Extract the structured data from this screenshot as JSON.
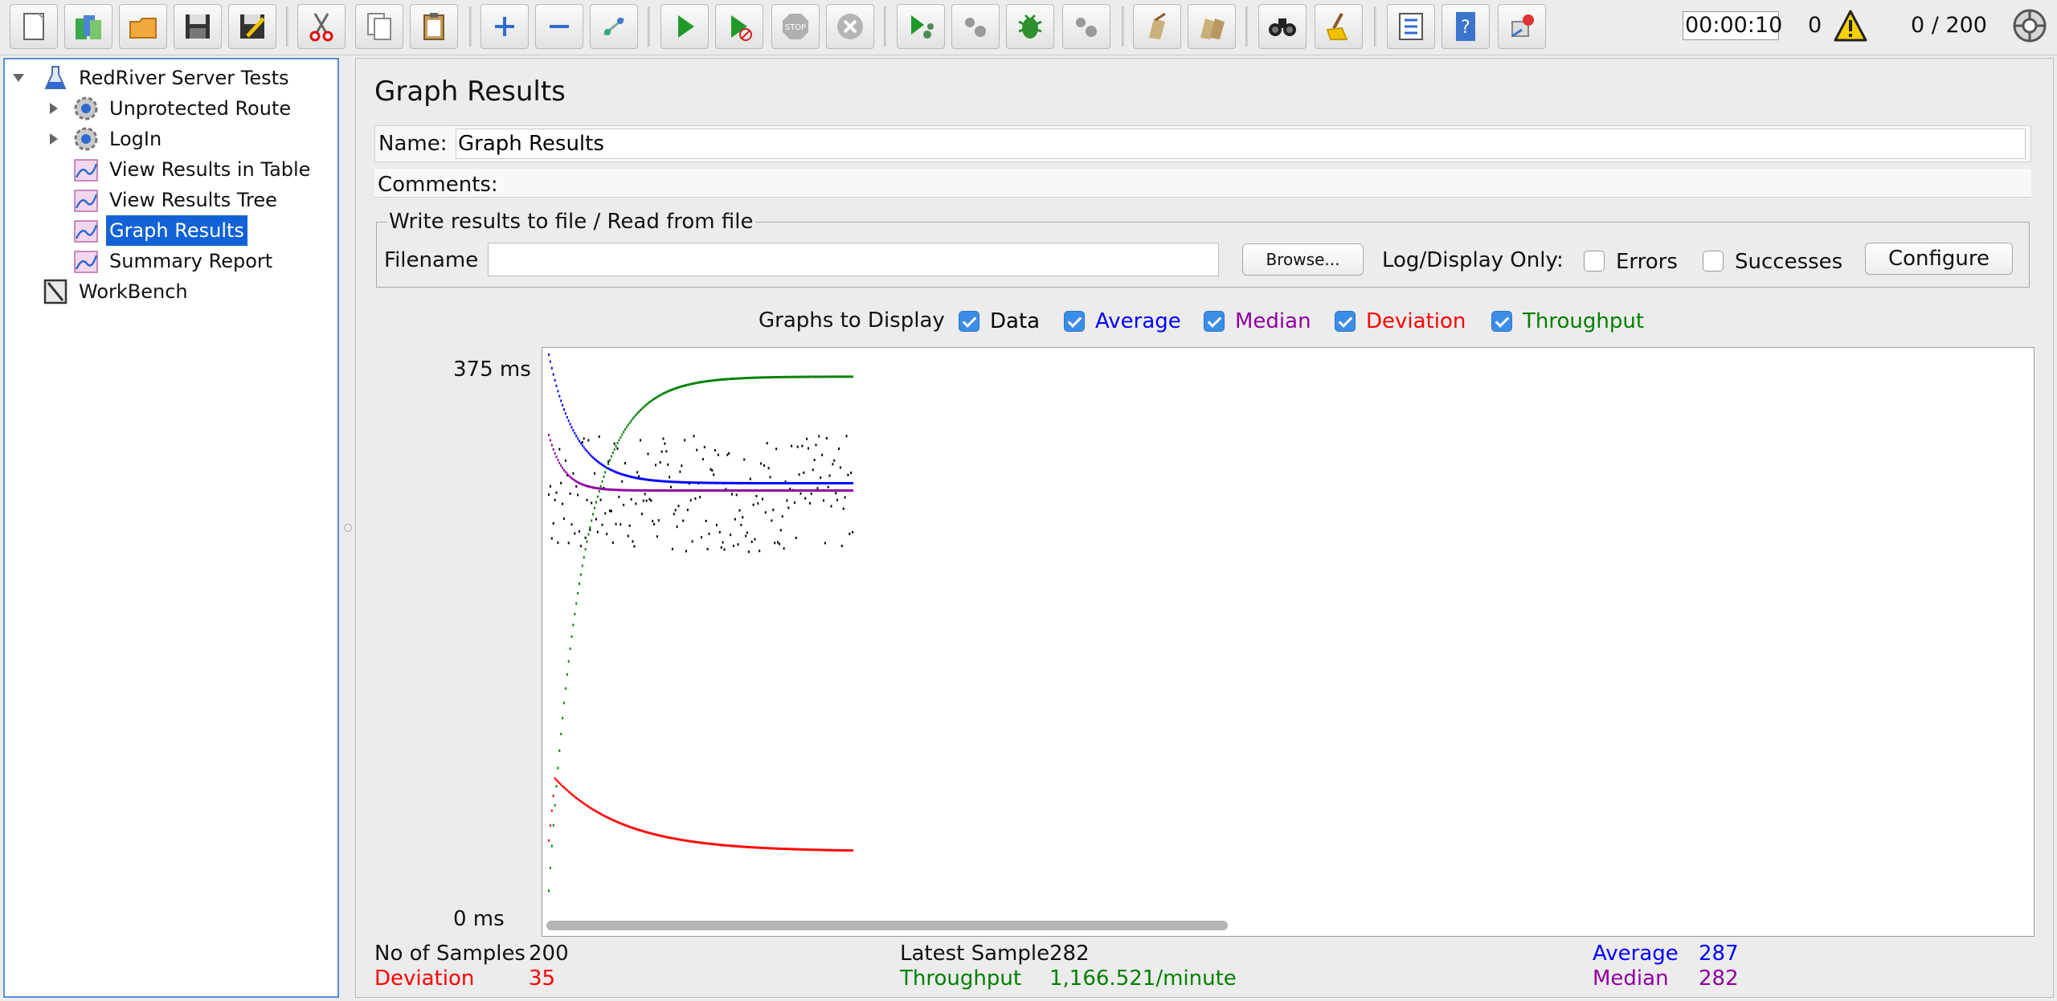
{
  "colors": {
    "data": "#000000",
    "average": "#0000ff",
    "median": "#9000a0",
    "deviation": "#ff0000",
    "throughput": "#008000",
    "selection": "#1162d6"
  },
  "toolbar": {
    "buttons": [
      {
        "name": "new-icon"
      },
      {
        "name": "templates-icon"
      },
      {
        "name": "open-icon"
      },
      {
        "name": "save-icon"
      },
      {
        "name": "save-as-icon"
      },
      {
        "name": "cut-icon"
      },
      {
        "name": "copy-icon"
      },
      {
        "name": "paste-icon"
      },
      {
        "name": "expand-all-icon"
      },
      {
        "name": "collapse-all-icon"
      },
      {
        "name": "toggle-icon"
      },
      {
        "name": "start-icon"
      },
      {
        "name": "start-no-pause-icon"
      },
      {
        "name": "stop-icon"
      },
      {
        "name": "shutdown-icon"
      },
      {
        "name": "remote-start-icon"
      },
      {
        "name": "remote-stop-icon"
      },
      {
        "name": "remote-debug-icon"
      },
      {
        "name": "remote-exit-icon"
      },
      {
        "name": "clear-icon"
      },
      {
        "name": "clear-all-icon"
      },
      {
        "name": "search-icon"
      },
      {
        "name": "reset-search-icon"
      },
      {
        "name": "function-helper-icon"
      },
      {
        "name": "help-icon"
      },
      {
        "name": "ssl-manager-icon"
      }
    ],
    "timer": "00:00:10",
    "error_count": "0",
    "threads": "0 / 200"
  },
  "tree": {
    "items": [
      {
        "label": "RedRiver Server Tests",
        "icon": "test-plan-icon"
      },
      {
        "label": "Unprotected Route",
        "icon": "thread-group-icon"
      },
      {
        "label": "LogIn",
        "icon": "thread-group-icon"
      },
      {
        "label": "View Results in Table",
        "icon": "listener-icon"
      },
      {
        "label": "View Results Tree",
        "icon": "listener-icon"
      },
      {
        "label": "Graph Results",
        "icon": "listener-icon",
        "selected": true
      },
      {
        "label": "Summary Report",
        "icon": "listener-icon"
      },
      {
        "label": "WorkBench",
        "icon": "workbench-icon"
      }
    ]
  },
  "panel": {
    "title": "Graph Results",
    "name_label": "Name:",
    "name_value": "Graph Results",
    "comments_label": "Comments:",
    "file_legend": "Write results to file / Read from file",
    "filename_label": "Filename",
    "filename_value": "",
    "browse_label": "Browse...",
    "log_display_label": "Log/Display Only:",
    "errors_label": "Errors",
    "successes_label": "Successes",
    "configure_label": "Configure",
    "graphs_label": "Graphs to Display",
    "graph_options": [
      {
        "label": "Data",
        "checked": true,
        "color": "#000000"
      },
      {
        "label": "Average",
        "checked": true,
        "color": "#0000ff"
      },
      {
        "label": "Median",
        "checked": true,
        "color": "#9000a0"
      },
      {
        "label": "Deviation",
        "checked": true,
        "color": "#ff0000"
      },
      {
        "label": "Throughput",
        "checked": true,
        "color": "#008000"
      }
    ]
  },
  "chart_data": {
    "type": "scatter",
    "y_max_label": "375  ms",
    "y_min_label": "0  ms",
    "ylim": [
      0,
      375
    ],
    "x_samples": 200,
    "series": [
      {
        "name": "Data",
        "approx_range": [
          240,
          320
        ]
      },
      {
        "name": "Average",
        "start": 375,
        "end": 287
      },
      {
        "name": "Median",
        "start": 320,
        "end": 282
      },
      {
        "name": "Deviation",
        "start": 85,
        "end": 35
      },
      {
        "name": "Throughput",
        "start": 0,
        "end": 360
      }
    ]
  },
  "stats": {
    "samples_label": "No of Samples",
    "samples_value": "200",
    "latest_label": "Latest Sample",
    "latest_value": "282",
    "average_label": "Average",
    "average_value": "287",
    "deviation_label": "Deviation",
    "deviation_value": "35",
    "throughput_label": "Throughput",
    "throughput_value": "1,166.521/minute",
    "median_label": "Median",
    "median_value": "282"
  }
}
